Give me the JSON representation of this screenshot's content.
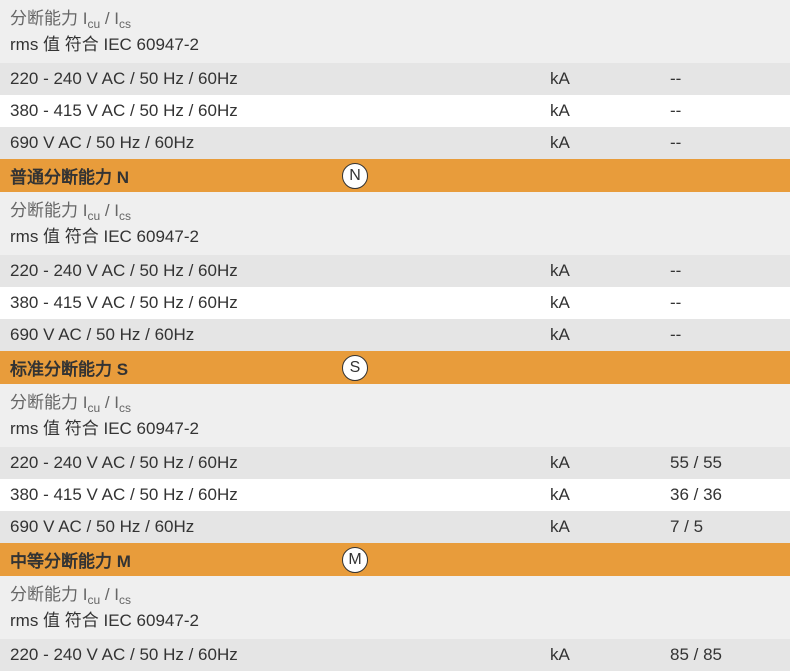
{
  "sections": [
    {
      "type": "subhead",
      "line1_pre": "分断能力 I",
      "line1_sub1": "cu",
      "line1_mid": " / I",
      "line1_sub2": "cs",
      "line2": "rms 值 符合 IEC 60947-2"
    },
    {
      "type": "data",
      "bg": "grey",
      "label": "220 - 240 V AC / 50 Hz / 60Hz",
      "unit": "kA",
      "value": "--"
    },
    {
      "type": "data",
      "bg": "white",
      "label": "380 - 415 V AC / 50 Hz / 60Hz",
      "unit": "kA",
      "value": "--"
    },
    {
      "type": "data",
      "bg": "grey",
      "label": "690 V AC / 50 Hz / 60Hz",
      "unit": "kA",
      "value": "--"
    },
    {
      "type": "header",
      "title": "普通分断能力 N",
      "icon": "N"
    },
    {
      "type": "subhead",
      "line1_pre": "分断能力 I",
      "line1_sub1": "cu",
      "line1_mid": " / I",
      "line1_sub2": "cs",
      "line2": "rms 值 符合 IEC 60947-2"
    },
    {
      "type": "data",
      "bg": "grey",
      "label": "220 - 240 V AC / 50 Hz / 60Hz",
      "unit": "kA",
      "value": "--"
    },
    {
      "type": "data",
      "bg": "white",
      "label": "380 - 415 V AC / 50 Hz / 60Hz",
      "unit": "kA",
      "value": "--"
    },
    {
      "type": "data",
      "bg": "grey",
      "label": "690 V AC / 50 Hz / 60Hz",
      "unit": "kA",
      "value": "--"
    },
    {
      "type": "header",
      "title": "标准分断能力 S",
      "icon": "S"
    },
    {
      "type": "subhead",
      "line1_pre": "分断能力 I",
      "line1_sub1": "cu",
      "line1_mid": " / I",
      "line1_sub2": "cs",
      "line2": "rms 值 符合 IEC 60947-2"
    },
    {
      "type": "data",
      "bg": "grey",
      "label": "220 - 240 V AC / 50 Hz / 60Hz",
      "unit": "kA",
      "value": "55 / 55"
    },
    {
      "type": "data",
      "bg": "white",
      "label": "380 - 415 V AC / 50 Hz / 60Hz",
      "unit": "kA",
      "value": "36 / 36"
    },
    {
      "type": "data",
      "bg": "grey",
      "label": "690 V AC / 50 Hz / 60Hz",
      "unit": "kA",
      "value": "7 / 5"
    },
    {
      "type": "header",
      "title": "中等分断能力 M",
      "icon": "M"
    },
    {
      "type": "subhead",
      "line1_pre": "分断能力 I",
      "line1_sub1": "cu",
      "line1_mid": " / I",
      "line1_sub2": "cs",
      "line2": "rms 值 符合 IEC 60947-2"
    },
    {
      "type": "data",
      "bg": "grey",
      "label": "220 - 240 V AC / 50 Hz / 60Hz",
      "unit": "kA",
      "value": "85 / 85"
    }
  ],
  "colors": {
    "orange": "#e89c3b",
    "grey": "#e5e5e5",
    "lightgrey": "#efefef",
    "white": "#ffffff"
  }
}
